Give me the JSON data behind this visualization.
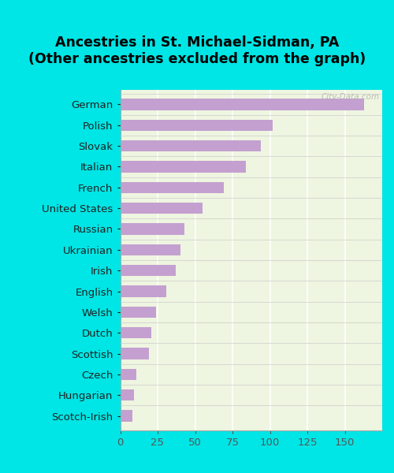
{
  "title": "Ancestries in St. Michael-Sidman, PA\n(Other ancestries excluded from the graph)",
  "categories": [
    "German",
    "Polish",
    "Slovak",
    "Italian",
    "French",
    "United States",
    "Russian",
    "Ukrainian",
    "Irish",
    "English",
    "Welsh",
    "Dutch",
    "Scottish",
    "Czech",
    "Hungarian",
    "Scotch-Irish"
  ],
  "values": [
    163,
    102,
    94,
    84,
    69,
    55,
    43,
    40,
    37,
    31,
    24,
    21,
    19,
    11,
    9,
    8
  ],
  "bar_color": "#c4a0d0",
  "background_color": "#00e5e5",
  "plot_bg_color": "#eef5e0",
  "xlim": [
    0,
    175
  ],
  "xticks": [
    0,
    25,
    50,
    75,
    100,
    125,
    150
  ],
  "title_fontsize": 12.5,
  "tick_fontsize": 9.5,
  "watermark": "City-Data.com"
}
